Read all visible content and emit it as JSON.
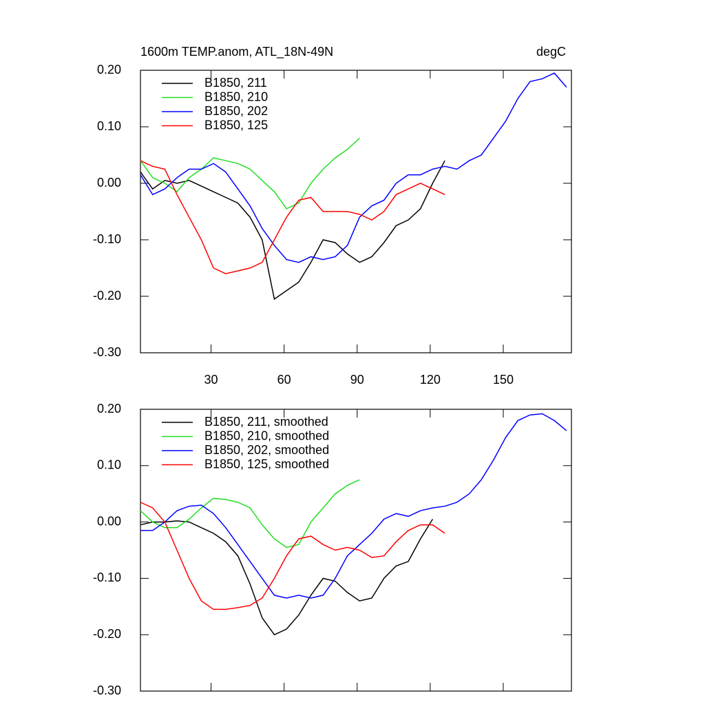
{
  "chart_data": [
    {
      "type": "line",
      "title": "1600m TEMP.anom, ATL_18N-49N",
      "units": "degC",
      "x": [
        1,
        6,
        11,
        16,
        21,
        26,
        31,
        36,
        41,
        46,
        51,
        56,
        61,
        66,
        71,
        76,
        81,
        86,
        91,
        96,
        101,
        106,
        111,
        116,
        121,
        126,
        131,
        136,
        141,
        146,
        151,
        156,
        161,
        166,
        171,
        176
      ],
      "series": [
        {
          "name": "B1850, 211",
          "color": "#000000",
          "values": [
            0.02,
            -0.01,
            0.005,
            0.0,
            0.005,
            -0.005,
            -0.015,
            -0.025,
            -0.035,
            -0.06,
            -0.1,
            -0.205,
            -0.19,
            -0.175,
            -0.14,
            -0.1,
            -0.105,
            -0.125,
            -0.14,
            -0.13,
            -0.105,
            -0.075,
            -0.065,
            -0.045,
            0.0,
            0.04,
            null,
            null,
            null,
            null,
            null,
            null,
            null,
            null,
            null,
            null
          ]
        },
        {
          "name": "B1850, 210",
          "color": "#22dd22",
          "values": [
            0.04,
            0.01,
            0.0,
            -0.015,
            0.01,
            0.025,
            0.045,
            0.04,
            0.035,
            0.025,
            0.005,
            -0.015,
            -0.045,
            -0.035,
            0.0,
            0.025,
            0.045,
            0.06,
            0.08,
            null,
            null,
            null,
            null,
            null,
            null,
            null,
            null,
            null,
            null,
            null,
            null,
            null,
            null,
            null,
            null,
            null
          ]
        },
        {
          "name": "B1850, 202",
          "color": "#0000ff",
          "values": [
            0.015,
            -0.02,
            -0.01,
            0.01,
            0.025,
            0.025,
            0.035,
            0.02,
            -0.01,
            -0.04,
            -0.08,
            -0.11,
            -0.135,
            -0.14,
            -0.13,
            -0.135,
            -0.13,
            -0.11,
            -0.06,
            -0.04,
            -0.03,
            0.0,
            0.015,
            0.015,
            0.025,
            0.03,
            0.025,
            0.04,
            0.05,
            0.08,
            0.11,
            0.15,
            0.18,
            0.185,
            0.195,
            0.17
          ]
        },
        {
          "name": "B1850, 125",
          "color": "#ff0000",
          "values": [
            0.04,
            0.03,
            0.025,
            -0.02,
            -0.06,
            -0.1,
            -0.15,
            -0.16,
            -0.155,
            -0.15,
            -0.14,
            -0.1,
            -0.06,
            -0.03,
            -0.025,
            -0.05,
            -0.05,
            -0.05,
            -0.055,
            -0.065,
            -0.05,
            -0.02,
            -0.01,
            0.0,
            -0.01,
            -0.02,
            null,
            null,
            null,
            null,
            null,
            null,
            null,
            null,
            null,
            null
          ]
        }
      ],
      "xlim": [
        1,
        178
      ],
      "xticks": [
        30,
        60,
        90,
        120,
        150
      ],
      "xtick_labels": true,
      "ylim": [
        -0.3,
        0.2
      ],
      "yticks": [
        {
          "value": 0.2,
          "label": "0.20"
        },
        {
          "value": 0.1,
          "label": "0.10"
        },
        {
          "value": 0,
          "label": "0.00"
        },
        {
          "value": -0.1,
          "label": "-0.10"
        },
        {
          "value": -0.2,
          "label": "-0.20"
        },
        {
          "value": -0.3,
          "label": "-0.30"
        }
      ],
      "legend": "upper left"
    },
    {
      "type": "line",
      "x": [
        1,
        6,
        11,
        16,
        21,
        26,
        31,
        36,
        41,
        46,
        51,
        56,
        61,
        66,
        71,
        76,
        81,
        86,
        91,
        96,
        101,
        106,
        111,
        116,
        121,
        126,
        131,
        136,
        141,
        146,
        151,
        156,
        161,
        166,
        171,
        176
      ],
      "series": [
        {
          "name": "B1850, 211, smoothed",
          "color": "#000000",
          "values": [
            -0.005,
            0.0,
            0.0,
            0.002,
            0.0,
            -0.01,
            -0.02,
            -0.035,
            -0.06,
            -0.11,
            -0.17,
            -0.2,
            -0.19,
            -0.165,
            -0.13,
            -0.1,
            -0.105,
            -0.125,
            -0.14,
            -0.135,
            -0.1,
            -0.078,
            -0.07,
            -0.03,
            0.005,
            null,
            null,
            null,
            null,
            null,
            null,
            null,
            null,
            null,
            null,
            null
          ]
        },
        {
          "name": "B1850, 210, smoothed",
          "color": "#22dd22",
          "values": [
            0.02,
            0.0,
            -0.01,
            -0.01,
            0.005,
            0.025,
            0.042,
            0.04,
            0.035,
            0.025,
            -0.005,
            -0.03,
            -0.045,
            -0.04,
            0.0,
            0.025,
            0.05,
            0.065,
            0.075,
            null,
            null,
            null,
            null,
            null,
            null,
            null,
            null,
            null,
            null,
            null,
            null,
            null,
            null,
            null,
            null,
            null
          ]
        },
        {
          "name": "B1850, 202, smoothed",
          "color": "#0000ff",
          "values": [
            -0.015,
            -0.015,
            0.0,
            0.02,
            0.028,
            0.03,
            0.015,
            -0.01,
            -0.04,
            -0.07,
            -0.1,
            -0.13,
            -0.135,
            -0.13,
            -0.135,
            -0.13,
            -0.1,
            -0.06,
            -0.04,
            -0.02,
            0.005,
            0.015,
            0.01,
            0.02,
            0.025,
            0.028,
            0.035,
            0.05,
            0.075,
            0.11,
            0.15,
            0.18,
            0.19,
            0.192,
            0.18,
            0.162
          ]
        },
        {
          "name": "B1850, 125, smoothed",
          "color": "#ff0000",
          "values": [
            0.035,
            0.025,
            0.0,
            -0.05,
            -0.1,
            -0.14,
            -0.155,
            -0.155,
            -0.152,
            -0.148,
            -0.135,
            -0.1,
            -0.06,
            -0.03,
            -0.025,
            -0.04,
            -0.05,
            -0.045,
            -0.05,
            -0.063,
            -0.06,
            -0.035,
            -0.015,
            -0.005,
            -0.005,
            -0.02,
            null,
            null,
            null,
            null,
            null,
            null,
            null,
            null,
            null,
            null
          ]
        }
      ],
      "xlim": [
        1,
        178
      ],
      "xticks": [
        30,
        60,
        90,
        120,
        150
      ],
      "xtick_labels": false,
      "ylim": [
        -0.3,
        0.2
      ],
      "yticks": [
        {
          "value": 0.2,
          "label": "0.20"
        },
        {
          "value": 0.1,
          "label": "0.10"
        },
        {
          "value": 0,
          "label": "0.00"
        },
        {
          "value": -0.1,
          "label": "-0.10"
        },
        {
          "value": -0.2,
          "label": "-0.20"
        },
        {
          "value": -0.3,
          "label": "-0.30"
        }
      ],
      "legend": "upper left"
    }
  ]
}
